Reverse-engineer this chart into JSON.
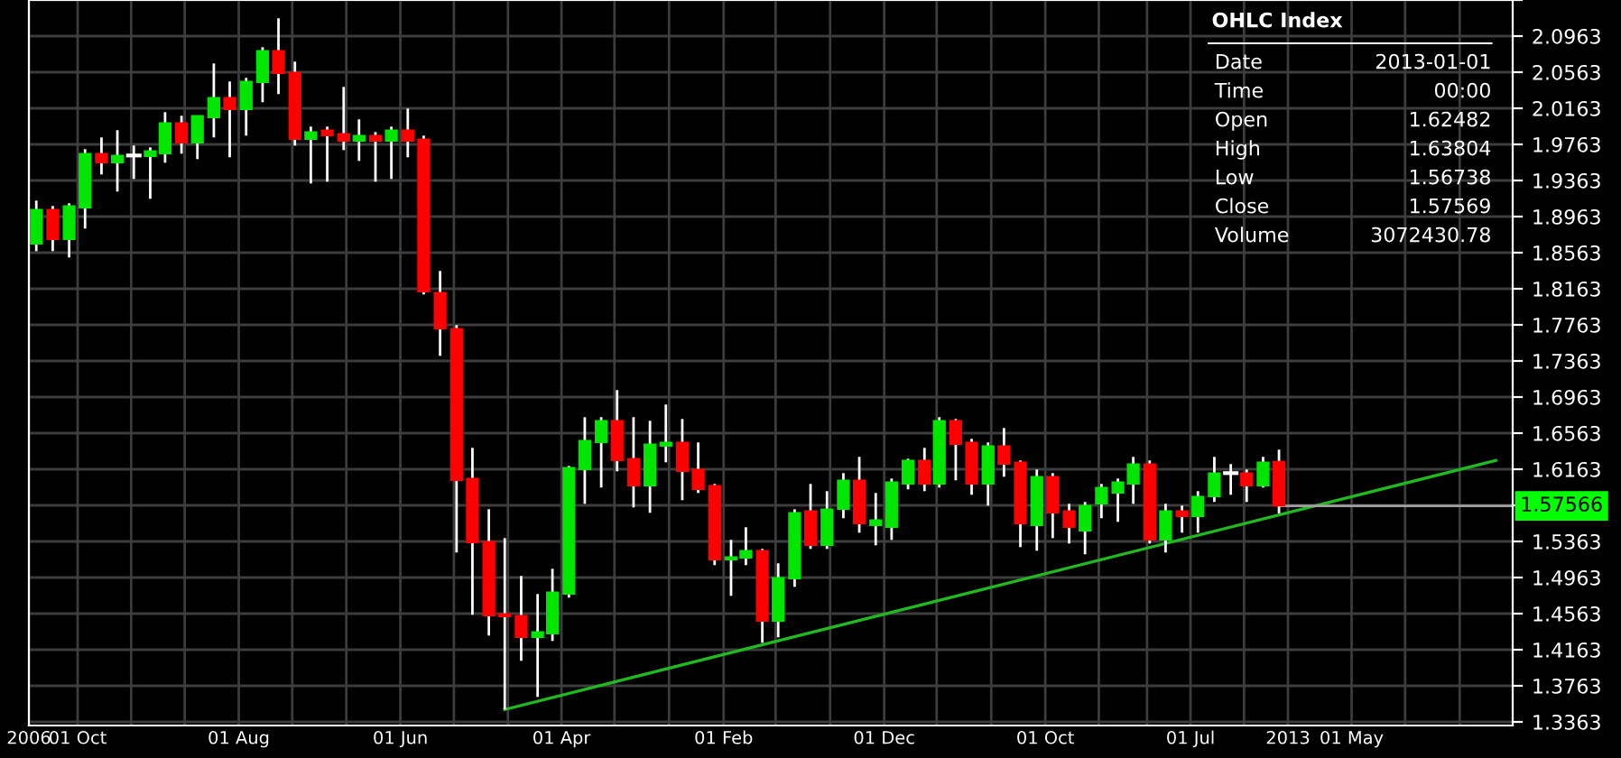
{
  "chart_data": {
    "type": "candlestick",
    "x": [
      "2006-07-15",
      "2006-08-15",
      "2006-09-15",
      "2006-10-15",
      "2006-11-15",
      "2006-12-15",
      "2007-01-15",
      "2007-02-15",
      "2007-03-15",
      "2007-04-15",
      "2007-05-15",
      "2007-06-15",
      "2007-07-15",
      "2007-08-15",
      "2007-09-15",
      "2007-10-15",
      "2007-11-15",
      "2007-12-15",
      "2008-01-15",
      "2008-02-15",
      "2008-03-15",
      "2008-04-15",
      "2008-05-15",
      "2008-06-15",
      "2008-07-15",
      "2008-08-15",
      "2008-09-15",
      "2008-10-15",
      "2008-11-15",
      "2008-12-15",
      "2009-01-15",
      "2009-02-15",
      "2009-03-15",
      "2009-04-15",
      "2009-05-15",
      "2009-06-15",
      "2009-07-15",
      "2009-08-15",
      "2009-09-15",
      "2009-10-15",
      "2009-11-15",
      "2009-12-15",
      "2010-01-15",
      "2010-02-15",
      "2010-03-15",
      "2010-04-15",
      "2010-05-15",
      "2010-06-15",
      "2010-07-15",
      "2010-08-15",
      "2010-09-15",
      "2010-10-15",
      "2010-11-15",
      "2010-12-15",
      "2011-01-15",
      "2011-02-15",
      "2011-03-15",
      "2011-04-15",
      "2011-05-15",
      "2011-06-15",
      "2011-07-15",
      "2011-08-15",
      "2011-09-15",
      "2011-10-15",
      "2011-11-15",
      "2011-12-15",
      "2012-01-15",
      "2012-02-15",
      "2012-03-15",
      "2012-04-15",
      "2012-05-15",
      "2012-06-15",
      "2012-07-15",
      "2012-08-15",
      "2012-09-15",
      "2012-10-15",
      "2012-11-15",
      "2012-12-15"
    ],
    "ohlc": [
      [
        1.866,
        1.914,
        1.858,
        1.904
      ],
      [
        1.904,
        1.908,
        1.858,
        1.871
      ],
      [
        1.871,
        1.911,
        1.851,
        1.908
      ],
      [
        1.906,
        1.971,
        1.883,
        1.966
      ],
      [
        1.966,
        1.984,
        1.943,
        1.956
      ],
      [
        1.956,
        1.992,
        1.924,
        1.964
      ],
      [
        1.964,
        1.975,
        1.938,
        1.964
      ],
      [
        1.963,
        1.973,
        1.916,
        1.969
      ],
      [
        1.966,
        2.012,
        1.956,
        2.0
      ],
      [
        2.0,
        2.008,
        1.966,
        1.978
      ],
      [
        1.978,
        2.008,
        1.96,
        2.008
      ],
      [
        2.006,
        2.066,
        1.984,
        2.028
      ],
      [
        2.028,
        2.046,
        1.962,
        2.015
      ],
      [
        2.015,
        2.05,
        1.986,
        2.046
      ],
      [
        2.045,
        2.084,
        2.023,
        2.08
      ],
      [
        2.08,
        2.116,
        2.032,
        2.055
      ],
      [
        2.056,
        2.068,
        1.975,
        1.982
      ],
      [
        1.982,
        1.996,
        1.933,
        1.99
      ],
      [
        1.992,
        1.996,
        1.935,
        1.986
      ],
      [
        1.988,
        2.04,
        1.97,
        1.98
      ],
      [
        1.98,
        2.004,
        1.958,
        1.986
      ],
      [
        1.986,
        1.99,
        1.935,
        1.98
      ],
      [
        1.98,
        1.996,
        1.938,
        1.992
      ],
      [
        1.992,
        2.016,
        1.962,
        1.98
      ],
      [
        1.982,
        1.986,
        1.81,
        1.813
      ],
      [
        1.812,
        1.836,
        1.742,
        1.772
      ],
      [
        1.772,
        1.776,
        1.524,
        1.604
      ],
      [
        1.606,
        1.64,
        1.455,
        1.535
      ],
      [
        1.536,
        1.572,
        1.432,
        1.454
      ],
      [
        1.456,
        1.54,
        1.35,
        1.453
      ],
      [
        1.454,
        1.498,
        1.404,
        1.43
      ],
      [
        1.43,
        1.478,
        1.364,
        1.436
      ],
      [
        1.434,
        1.506,
        1.426,
        1.48
      ],
      [
        1.478,
        1.62,
        1.474,
        1.618
      ],
      [
        1.616,
        1.674,
        1.578,
        1.648
      ],
      [
        1.646,
        1.674,
        1.596,
        1.67
      ],
      [
        1.67,
        1.704,
        1.614,
        1.626
      ],
      [
        1.628,
        1.674,
        1.574,
        1.598
      ],
      [
        1.598,
        1.67,
        1.568,
        1.644
      ],
      [
        1.642,
        1.688,
        1.624,
        1.646
      ],
      [
        1.646,
        1.672,
        1.582,
        1.614
      ],
      [
        1.616,
        1.646,
        1.59,
        1.594
      ],
      [
        1.598,
        1.6,
        1.51,
        1.516
      ],
      [
        1.516,
        1.538,
        1.476,
        1.519
      ],
      [
        1.518,
        1.552,
        1.51,
        1.526
      ],
      [
        1.526,
        1.528,
        1.424,
        1.448
      ],
      [
        1.448,
        1.512,
        1.43,
        1.496
      ],
      [
        1.495,
        1.572,
        1.486,
        1.568
      ],
      [
        1.57,
        1.6,
        1.528,
        1.532
      ],
      [
        1.532,
        1.592,
        1.528,
        1.572
      ],
      [
        1.572,
        1.612,
        1.562,
        1.604
      ],
      [
        1.604,
        1.63,
        1.546,
        1.556
      ],
      [
        1.554,
        1.59,
        1.532,
        1.56
      ],
      [
        1.552,
        1.606,
        1.538,
        1.602
      ],
      [
        1.6,
        1.628,
        1.594,
        1.626
      ],
      [
        1.626,
        1.64,
        1.592,
        1.6
      ],
      [
        1.6,
        1.674,
        1.596,
        1.67
      ],
      [
        1.67,
        1.672,
        1.604,
        1.644
      ],
      [
        1.646,
        1.65,
        1.588,
        1.6
      ],
      [
        1.6,
        1.646,
        1.576,
        1.642
      ],
      [
        1.642,
        1.662,
        1.608,
        1.622
      ],
      [
        1.624,
        1.626,
        1.53,
        1.556
      ],
      [
        1.554,
        1.616,
        1.526,
        1.608
      ],
      [
        1.608,
        1.612,
        1.54,
        1.568
      ],
      [
        1.57,
        1.578,
        1.534,
        1.552
      ],
      [
        1.548,
        1.58,
        1.522,
        1.576
      ],
      [
        1.578,
        1.6,
        1.562,
        1.596
      ],
      [
        1.59,
        1.606,
        1.558,
        1.602
      ],
      [
        1.6,
        1.63,
        1.578,
        1.622
      ],
      [
        1.622,
        1.626,
        1.534,
        1.538
      ],
      [
        1.538,
        1.578,
        1.524,
        1.57
      ],
      [
        1.57,
        1.576,
        1.546,
        1.564
      ],
      [
        1.564,
        1.592,
        1.546,
        1.586
      ],
      [
        1.586,
        1.63,
        1.58,
        1.612
      ],
      [
        1.612,
        1.622,
        1.588,
        1.612
      ],
      [
        1.612,
        1.616,
        1.58,
        1.598
      ],
      [
        1.598,
        1.63,
        1.596,
        1.624
      ],
      [
        1.62482,
        1.63804,
        1.56738,
        1.57569
      ]
    ],
    "colors": [
      "#00e600",
      "#ff0000",
      "#00e600",
      "#00e600",
      "#ff0000",
      "#00e600",
      "#ffffff",
      "#00e600",
      "#00e600",
      "#ff0000",
      "#00e600",
      "#00e600",
      "#ff0000",
      "#00e600",
      "#00e600",
      "#ff0000",
      "#ff0000",
      "#00e600",
      "#ff0000",
      "#ff0000",
      "#00e600",
      "#ff0000",
      "#00e600",
      "#ff0000",
      "#ff0000",
      "#ff0000",
      "#ff0000",
      "#ff0000",
      "#ff0000",
      "#ff0000",
      "#ff0000",
      "#00e600",
      "#00e600",
      "#00e600",
      "#00e600",
      "#00e600",
      "#ff0000",
      "#ff0000",
      "#00e600",
      "#00e600",
      "#ff0000",
      "#ff0000",
      "#ff0000",
      "#00e600",
      "#00e600",
      "#ff0000",
      "#00e600",
      "#00e600",
      "#ff0000",
      "#00e600",
      "#00e600",
      "#ff0000",
      "#00e600",
      "#00e600",
      "#00e600",
      "#ff0000",
      "#00e600",
      "#ff0000",
      "#ff0000",
      "#00e600",
      "#ff0000",
      "#ff0000",
      "#00e600",
      "#ff0000",
      "#ff0000",
      "#00e600",
      "#00e600",
      "#00e600",
      "#00e600",
      "#ff0000",
      "#00e600",
      "#ff0000",
      "#00e600",
      "#00e600",
      "#ffffff",
      "#ff0000",
      "#00e600",
      "#ff0000"
    ],
    "series": [
      {
        "type": "line",
        "color": "#22b822",
        "x": [
          "2008-12-15",
          "2014-01-28"
        ],
        "values": [
          1.35,
          1.626
        ]
      }
    ],
    "ref_lines": [
      {
        "axis": "y",
        "value": 1.57566,
        "label": "1.57566",
        "color": "#a0a0a0"
      }
    ],
    "xlim": [
      "2006-07-01",
      "2014-03-01"
    ],
    "xticks": [
      {
        "value": "2006-07-01",
        "label": "2006"
      },
      {
        "value": "2006-10-01",
        "label": "01 Oct"
      },
      {
        "value": "2007-01-10",
        "label": null
      },
      {
        "value": "2007-04-21",
        "label": null
      },
      {
        "value": "2007-08-01",
        "label": "01 Aug"
      },
      {
        "value": "2007-11-10",
        "label": null
      },
      {
        "value": "2008-02-20",
        "label": null
      },
      {
        "value": "2008-06-01",
        "label": "01 Jun"
      },
      {
        "value": "2008-09-10",
        "label": null
      },
      {
        "value": "2008-12-21",
        "label": null
      },
      {
        "value": "2009-04-01",
        "label": "01 Apr"
      },
      {
        "value": "2009-07-10",
        "label": null
      },
      {
        "value": "2009-10-21",
        "label": null
      },
      {
        "value": "2010-02-01",
        "label": "01 Feb"
      },
      {
        "value": "2010-05-10",
        "label": null
      },
      {
        "value": "2010-08-21",
        "label": null
      },
      {
        "value": "2010-12-01",
        "label": "01 Dec"
      },
      {
        "value": "2011-03-10",
        "label": null
      },
      {
        "value": "2011-06-21",
        "label": null
      },
      {
        "value": "2011-10-01",
        "label": "01 Oct"
      },
      {
        "value": "2012-01-10",
        "label": null
      },
      {
        "value": "2012-04-10",
        "label": null
      },
      {
        "value": "2012-07-01",
        "label": "01 Jul"
      },
      {
        "value": "2012-10-10",
        "label": null
      },
      {
        "value": "2013-01-01",
        "label": "2013"
      },
      {
        "value": "2013-05-01",
        "label": "01 May"
      },
      {
        "value": "2013-08-10",
        "label": null
      },
      {
        "value": "2013-11-21",
        "label": null
      }
    ],
    "ylim": [
      1.3323,
      2.1363
    ],
    "yticks": [
      1.3363,
      1.3763,
      1.4163,
      1.4563,
      1.4963,
      1.5363,
      {
        "value": 1.5763,
        "label": null
      },
      1.6163,
      1.6563,
      1.6963,
      1.7363,
      1.7763,
      1.8163,
      1.8563,
      1.8963,
      1.9363,
      1.9763,
      2.0163,
      2.0563,
      2.0963,
      {
        "value": 2.1363,
        "label": null
      }
    ],
    "grid": true,
    "annotations": [
      "OHLC Index",
      "Date",
      "2013-01-01",
      "Time",
      "00:00",
      "Open",
      "1.62482",
      "High",
      "1.63804",
      "Low",
      "1.56738",
      "Close",
      "1.57569",
      "Volume",
      "3072430.78"
    ]
  }
}
